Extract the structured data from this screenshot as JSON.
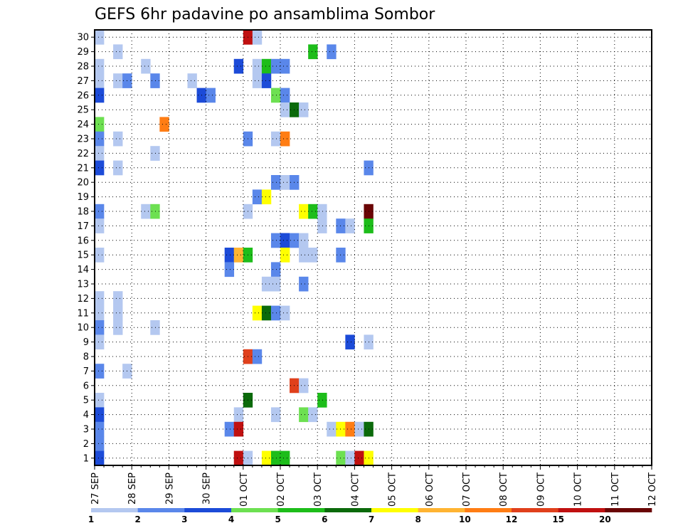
{
  "chart_data": {
    "type": "heatmap",
    "title": "GEFS 6hr padavine po ansamblima Sombor",
    "y_labels": [
      "1",
      "2",
      "3",
      "4",
      "5",
      "6",
      "7",
      "8",
      "9",
      "10",
      "11",
      "12",
      "13",
      "14",
      "15",
      "16",
      "17",
      "18",
      "19",
      "20",
      "21",
      "22",
      "23",
      "24",
      "25",
      "26",
      "27",
      "28",
      "29",
      "30"
    ],
    "x_labels": [
      "27 SEP",
      "28 SEP",
      "29 SEP",
      "30 SEP",
      "01 OCT",
      "02 OCT",
      "03 OCT",
      "04 OCT",
      "05 OCT",
      "06 OCT",
      "07 OCT",
      "08 OCT",
      "09 OCT",
      "10 OCT",
      "11 OCT",
      "12 OCT"
    ],
    "x_unit": "6-hour step from 27 SEP 00Z",
    "n_steps": 60,
    "grid": true,
    "legend": {
      "placement": "bottom",
      "labels": [
        "1",
        "2",
        "3",
        "4",
        "5",
        "6",
        "7",
        "8",
        "10",
        "12",
        "15",
        "20"
      ],
      "colors": [
        "#b4c8f0",
        "#5a87ea",
        "#1c4bd8",
        "#6de051",
        "#1dbd1a",
        "#0b6a0b",
        "#ffff00",
        "#ffb432",
        "#ff7d14",
        "#e0401c",
        "#c01010",
        "#6a0505"
      ]
    },
    "cells": [
      [
        30,
        0,
        0
      ],
      [
        30,
        16,
        10
      ],
      [
        30,
        17,
        0
      ],
      [
        29,
        2,
        0
      ],
      [
        29,
        23,
        4
      ],
      [
        29,
        25,
        1
      ],
      [
        28,
        0,
        0
      ],
      [
        28,
        5,
        0
      ],
      [
        28,
        15,
        2
      ],
      [
        28,
        17,
        0
      ],
      [
        28,
        18,
        4
      ],
      [
        28,
        19,
        1
      ],
      [
        28,
        20,
        1
      ],
      [
        27,
        0,
        0
      ],
      [
        27,
        2,
        0
      ],
      [
        27,
        3,
        1
      ],
      [
        27,
        6,
        1
      ],
      [
        27,
        10,
        0
      ],
      [
        27,
        17,
        0
      ],
      [
        27,
        18,
        2
      ],
      [
        26,
        0,
        2
      ],
      [
        26,
        11,
        2
      ],
      [
        26,
        12,
        1
      ],
      [
        26,
        19,
        3
      ],
      [
        26,
        20,
        1
      ],
      [
        25,
        20,
        0
      ],
      [
        25,
        21,
        5
      ],
      [
        25,
        22,
        0
      ],
      [
        24,
        0,
        3
      ],
      [
        24,
        7,
        8
      ],
      [
        23,
        0,
        1
      ],
      [
        23,
        2,
        0
      ],
      [
        23,
        16,
        1
      ],
      [
        23,
        19,
        0
      ],
      [
        23,
        20,
        8
      ],
      [
        22,
        0,
        0
      ],
      [
        22,
        6,
        0
      ],
      [
        21,
        0,
        2
      ],
      [
        21,
        2,
        0
      ],
      [
        21,
        29,
        1
      ],
      [
        20,
        19,
        1
      ],
      [
        20,
        20,
        0
      ],
      [
        20,
        21,
        1
      ],
      [
        19,
        17,
        1
      ],
      [
        19,
        18,
        6
      ],
      [
        18,
        0,
        1
      ],
      [
        18,
        5,
        0
      ],
      [
        18,
        6,
        3
      ],
      [
        18,
        16,
        0
      ],
      [
        18,
        22,
        6
      ],
      [
        18,
        23,
        4
      ],
      [
        18,
        24,
        0
      ],
      [
        18,
        29,
        11
      ],
      [
        17,
        0,
        0
      ],
      [
        17,
        24,
        0
      ],
      [
        17,
        26,
        1
      ],
      [
        17,
        27,
        0
      ],
      [
        17,
        29,
        4
      ],
      [
        16,
        19,
        1
      ],
      [
        16,
        20,
        2
      ],
      [
        16,
        20,
        2
      ],
      [
        16,
        21,
        1
      ],
      [
        16,
        22,
        0
      ],
      [
        15,
        0,
        0
      ],
      [
        15,
        14,
        2
      ],
      [
        15,
        15,
        7
      ],
      [
        15,
        16,
        4
      ],
      [
        15,
        20,
        6
      ],
      [
        15,
        22,
        0
      ],
      [
        15,
        23,
        0
      ],
      [
        15,
        26,
        1
      ],
      [
        14,
        14,
        1
      ],
      [
        14,
        19,
        1
      ],
      [
        13,
        18,
        0
      ],
      [
        13,
        19,
        0
      ],
      [
        13,
        22,
        1
      ],
      [
        12,
        0,
        0
      ],
      [
        12,
        2,
        0
      ],
      [
        11,
        0,
        0
      ],
      [
        11,
        2,
        0
      ],
      [
        11,
        17,
        6
      ],
      [
        11,
        18,
        5
      ],
      [
        11,
        19,
        1
      ],
      [
        11,
        20,
        0
      ],
      [
        10,
        0,
        1
      ],
      [
        10,
        2,
        0
      ],
      [
        10,
        6,
        0
      ],
      [
        9,
        0,
        0
      ],
      [
        9,
        27,
        2
      ],
      [
        9,
        29,
        0
      ],
      [
        8,
        16,
        9
      ],
      [
        8,
        17,
        1
      ],
      [
        7,
        0,
        1
      ],
      [
        7,
        3,
        0
      ],
      [
        6,
        21,
        9
      ],
      [
        6,
        22,
        0
      ],
      [
        5,
        0,
        0
      ],
      [
        5,
        16,
        5
      ],
      [
        5,
        24,
        4
      ],
      [
        4,
        0,
        2
      ],
      [
        4,
        15,
        0
      ],
      [
        4,
        19,
        0
      ],
      [
        4,
        22,
        3
      ],
      [
        4,
        23,
        0
      ],
      [
        3,
        0,
        1
      ],
      [
        3,
        14,
        1
      ],
      [
        3,
        15,
        10
      ],
      [
        3,
        25,
        0
      ],
      [
        3,
        26,
        6
      ],
      [
        3,
        27,
        8
      ],
      [
        3,
        28,
        0
      ],
      [
        3,
        29,
        5
      ],
      [
        2,
        0,
        1
      ],
      [
        1,
        0,
        2
      ],
      [
        1,
        15,
        10
      ],
      [
        1,
        16,
        0
      ],
      [
        1,
        18,
        6
      ],
      [
        1,
        19,
        4
      ],
      [
        1,
        20,
        4
      ],
      [
        1,
        26,
        3
      ],
      [
        1,
        27,
        0
      ],
      [
        1,
        28,
        10
      ],
      [
        1,
        29,
        6
      ]
    ]
  }
}
